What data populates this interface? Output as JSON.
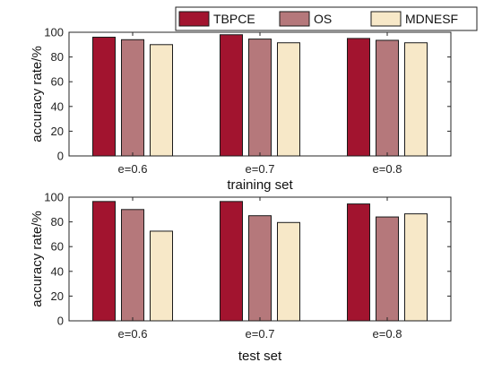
{
  "chart_data": [
    {
      "type": "bar",
      "categories": [
        "e=0.6",
        "e=0.7",
        "e=0.8"
      ],
      "series": [
        {
          "name": "TBPCE",
          "values": [
            96,
            98,
            95
          ]
        },
        {
          "name": "OS",
          "values": [
            94,
            94.5,
            93.5
          ]
        },
        {
          "name": "MDNESF",
          "values": [
            90,
            91.5,
            91.5
          ]
        }
      ],
      "xlabel": "training set",
      "ylabel": "accuracy rate/%",
      "ylim": [
        0,
        100
      ],
      "yticks": [
        0,
        20,
        40,
        60,
        80,
        100
      ],
      "grid": false,
      "legend": "top-right"
    },
    {
      "type": "bar",
      "categories": [
        "e=0.6",
        "e=0.7",
        "e=0.8"
      ],
      "series": [
        {
          "name": "TBPCE",
          "values": [
            96.5,
            96.5,
            94.5
          ]
        },
        {
          "name": "OS",
          "values": [
            90,
            85,
            84
          ]
        },
        {
          "name": "MDNESF",
          "values": [
            72.5,
            79.5,
            86.5
          ]
        }
      ],
      "xlabel": "test set",
      "ylabel": "accuracy rate/%",
      "ylim": [
        0,
        100
      ],
      "yticks": [
        0,
        20,
        40,
        60,
        80,
        100
      ],
      "grid": false
    }
  ],
  "colors": {
    "TBPCE": "#a2142f",
    "OS": "#b5787b",
    "MDNESF": "#f7e8c8"
  },
  "legend": {
    "items": [
      "TBPCE",
      "OS",
      "MDNESF"
    ]
  }
}
